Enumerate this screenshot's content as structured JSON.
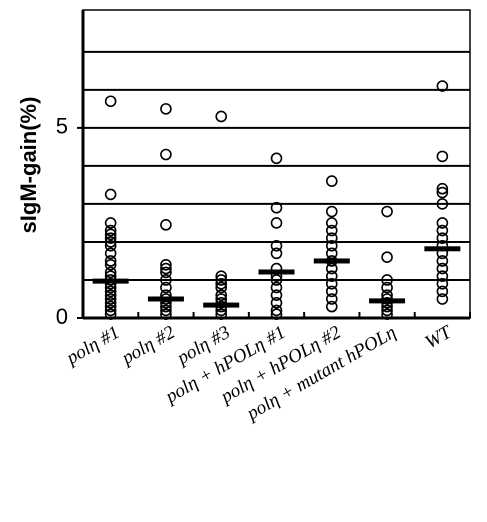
{
  "chart_data": {
    "type": "dot",
    "y_label": "sIgM-gain(%)",
    "categories": [
      "polη #1",
      "polη #2",
      "polη #3",
      "polη + hPOLη #1",
      "polη + hPOLη #2",
      "polη + mutant hPOLη",
      "WT"
    ],
    "values": [
      [
        5.7,
        3.25,
        2.5,
        2.3,
        2.2,
        2.1,
        2.0,
        1.9,
        1.7,
        1.5,
        1.4,
        1.2,
        1.1,
        1.0,
        0.9,
        0.8,
        0.7,
        0.6,
        0.5,
        0.4,
        0.3,
        0.2,
        0.1
      ],
      [
        5.5,
        4.3,
        2.45,
        1.4,
        1.3,
        1.2,
        1.0,
        0.8,
        0.6,
        0.5,
        0.4,
        0.3,
        0.2,
        0.1
      ],
      [
        5.3,
        1.1,
        1.0,
        0.9,
        0.8,
        0.6,
        0.5,
        0.4,
        0.3,
        0.2,
        0.1
      ],
      [
        4.2,
        2.9,
        2.5,
        1.9,
        1.7,
        1.3,
        1.1,
        1.0,
        0.8,
        0.6,
        0.4,
        0.2,
        0.1
      ],
      [
        3.6,
        2.8,
        2.5,
        2.3,
        2.1,
        1.9,
        1.7,
        1.5,
        1.3,
        1.1,
        0.9,
        0.7,
        0.5,
        0.3
      ],
      [
        2.8,
        1.6,
        1.0,
        0.8,
        0.6,
        0.5,
        0.4,
        0.3,
        0.2,
        0.1
      ],
      [
        6.1,
        4.25,
        3.4,
        3.3,
        3.0,
        2.5,
        2.3,
        2.1,
        1.9,
        1.7,
        1.5,
        1.3,
        1.1,
        0.9,
        0.7,
        0.5
      ]
    ],
    "means": [
      0.97,
      0.5,
      0.34,
      1.21,
      1.5,
      0.45,
      1.82
    ],
    "color": "#000000",
    "ylim": [
      0,
      8.1
    ],
    "yticks": [
      0,
      5
    ],
    "grid_values": [
      1,
      2,
      3,
      4,
      5,
      6,
      7
    ],
    "grid": true
  }
}
